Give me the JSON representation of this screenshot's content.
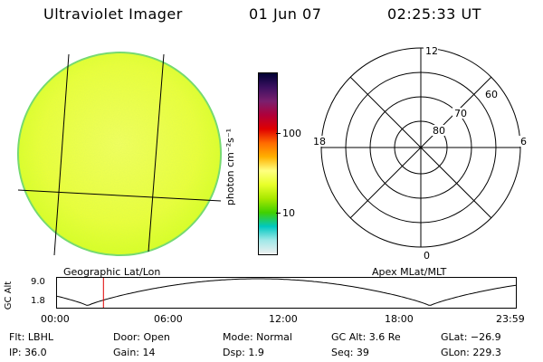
{
  "header": {
    "title": "Ultraviolet Imager",
    "date": "01 Jun 07",
    "time": "02:25:33 UT"
  },
  "colorbar": {
    "unit": "photon cm⁻²s⁻¹",
    "ticks": [
      "100",
      "10"
    ],
    "colors": [
      "#000033",
      "#3b1060",
      "#7a1f6e",
      "#b0003a",
      "#e00000",
      "#ff6a00",
      "#ffb000",
      "#ffff80",
      "#e8ff2a",
      "#a8e800",
      "#40d000",
      "#00c8c0",
      "#a0e8e8",
      "#f0f0f0"
    ]
  },
  "polar": {
    "labels": {
      "top": "12",
      "bottom": "0",
      "left": "18",
      "right": "6"
    },
    "rings": [
      "80",
      "70",
      "60"
    ]
  },
  "captions": {
    "left": "Geographic Lat/Lon",
    "right": "Apex MLat/MLT"
  },
  "altitude_plot": {
    "ylabel": "GC Alt",
    "ymax": "9.0",
    "ymin": "1.8",
    "xticks": [
      "00:00",
      "06:00",
      "12:00",
      "18:00",
      "23:59"
    ],
    "marker_hour": 2.43
  },
  "info": {
    "flt": "Flt: LBHL",
    "door": "Door: Open",
    "mode": "Mode: Normal",
    "gcalt": "GC Alt: 3.6 Re",
    "glat": "GLat: −26.9",
    "ip": "IP: 36.0",
    "gain": "Gain: 14",
    "dsp": "Dsp:     1.9",
    "seq": "Seq: 39",
    "glon": "GLon: 229.3"
  }
}
